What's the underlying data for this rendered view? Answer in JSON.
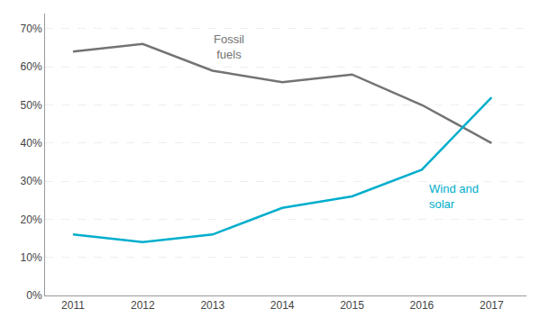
{
  "chart_data": {
    "type": "line",
    "x": [
      2011,
      2012,
      2013,
      2014,
      2015,
      2016,
      2017
    ],
    "series": [
      {
        "name": "Fossil\nfuels",
        "color": "#737373",
        "values": [
          0.64,
          0.66,
          0.59,
          0.56,
          0.58,
          0.5,
          0.4
        ]
      },
      {
        "name": "Wind and\nsolar",
        "color": "#00AECC",
        "values": [
          0.16,
          0.14,
          0.16,
          0.23,
          0.26,
          0.33,
          0.52
        ]
      }
    ],
    "xlim": [
      2010.6,
      2017.5
    ],
    "xticks": [
      2011,
      2012,
      2013,
      2014,
      2015,
      2016,
      2017
    ],
    "ylim": [
      0,
      0.74
    ],
    "yticks": [
      {
        "value": 0,
        "label": "0%"
      },
      {
        "value": 0.1,
        "label": "10%"
      },
      {
        "value": 0.2,
        "label": "20%"
      },
      {
        "value": 0.3,
        "label": "30%"
      },
      {
        "value": 0.4,
        "label": "40%"
      },
      {
        "value": 0.5,
        "label": "50%"
      },
      {
        "value": 0.6,
        "label": "60%"
      },
      {
        "value": 0.7,
        "label": "70%"
      }
    ],
    "grid": true
  }
}
